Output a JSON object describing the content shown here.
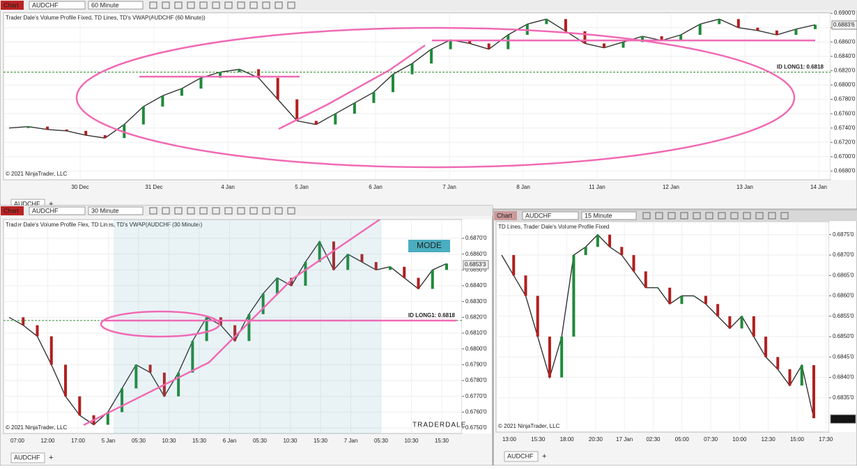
{
  "panels": [
    {
      "toolbar": {
        "label": "Chart",
        "symbol": "AUDCHF",
        "interval": "60 Minute"
      },
      "title": "Trader Dale's Volume Profile Fixed, TD Lines, TD's VWAP(AUDCHF (60 Minute))",
      "ylim": [
        0.66678,
        0.69011
      ],
      "yticks": [
        {
          "value": 0.69,
          "label": "0.6900'0"
        },
        {
          "value": 0.688,
          "label": "0.6880'0"
        },
        {
          "value": 0.686,
          "label": "0.6860'0"
        },
        {
          "value": 0.684,
          "label": "0.6840'0"
        },
        {
          "value": 0.682,
          "label": "0.6820'0"
        },
        {
          "value": 0.68,
          "label": "0.6800'0"
        },
        {
          "value": 0.678,
          "label": "0.6780'0"
        },
        {
          "value": 0.676,
          "label": "0.6760'0"
        },
        {
          "value": 0.674,
          "label": "0.6740'0"
        },
        {
          "value": 0.672,
          "label": "0.6720'0"
        },
        {
          "value": 0.67,
          "label": "0.6700'0"
        },
        {
          "value": 0.668,
          "label": "0.6680'0"
        }
      ],
      "xlabels": [
        "30 Dec",
        "31 Dec",
        "4 Jan",
        "5 Jan",
        "6 Jan",
        "7 Jan",
        "8 Jan",
        "11 Jan",
        "12 Jan",
        "13 Jan",
        "14 Jan"
      ],
      "closes": [
        0.674,
        0.6742,
        0.6738,
        0.6736,
        0.673,
        0.6726,
        0.6745,
        0.677,
        0.6785,
        0.6795,
        0.681,
        0.6818,
        0.6822,
        0.681,
        0.678,
        0.675,
        0.6745,
        0.676,
        0.6775,
        0.679,
        0.6815,
        0.683,
        0.685,
        0.6863,
        0.6858,
        0.685,
        0.687,
        0.6885,
        0.6892,
        0.6875,
        0.6858,
        0.6852,
        0.686,
        0.6868,
        0.6862,
        0.687,
        0.6885,
        0.6892,
        0.688,
        0.6876,
        0.687,
        0.6878,
        0.6884
      ],
      "line_color": "#333333",
      "price": {
        "value": 0.68836,
        "label": "0.6883'6"
      },
      "id_line": {
        "value": 0.6818,
        "label": "ID LONG1: 0.6818"
      },
      "copyright": "© 2021 NinjaTrader, LLC",
      "tab": "AUDCHF"
    },
    {
      "toolbar": {
        "label": "Chart",
        "symbol": "AUDCHF",
        "interval": "30 Minute"
      },
      "title": "Trader Dale's Volume Profile Flex, TD Lines, TD's VWAP(AUDCHF (30 Minute))",
      "ylim": [
        0.67465,
        0.68819
      ],
      "yticks": [
        {
          "value": 0.687,
          "label": "0.6870'0"
        },
        {
          "value": 0.686,
          "label": "0.6860'0"
        },
        {
          "value": 0.685,
          "label": "0.6850'0"
        },
        {
          "value": 0.684,
          "label": "0.6840'0"
        },
        {
          "value": 0.683,
          "label": "0.6830'0"
        },
        {
          "value": 0.682,
          "label": "0.6820'0"
        },
        {
          "value": 0.681,
          "label": "0.6810'0"
        },
        {
          "value": 0.68,
          "label": "0.6800'0"
        },
        {
          "value": 0.679,
          "label": "0.6790'0"
        },
        {
          "value": 0.678,
          "label": "0.6780'0"
        },
        {
          "value": 0.677,
          "label": "0.6770'0"
        },
        {
          "value": 0.676,
          "label": "0.6760'0"
        },
        {
          "value": 0.675,
          "label": "0.6750'0"
        }
      ],
      "xlabels": [
        "07:00",
        "12:00",
        "17:00",
        "5 Jan",
        "05:30",
        "10:30",
        "15:30",
        "6 Jan",
        "05:30",
        "10:30",
        "15:30",
        "7 Jan",
        "05:30",
        "10:30",
        "15:30"
      ],
      "closes": [
        0.682,
        0.6815,
        0.6808,
        0.679,
        0.677,
        0.6758,
        0.6752,
        0.676,
        0.6775,
        0.679,
        0.6785,
        0.677,
        0.6785,
        0.6805,
        0.682,
        0.6815,
        0.6805,
        0.6822,
        0.6835,
        0.6845,
        0.684,
        0.6855,
        0.6868,
        0.685,
        0.686,
        0.6855,
        0.685,
        0.6852,
        0.6845,
        0.6838,
        0.685,
        0.6854
      ],
      "line_color": "#333333",
      "price": {
        "value": 0.68533,
        "label": "0.6853'3"
      },
      "id_line": {
        "value": 0.6818,
        "label": "ID LONG1: 0.6818"
      },
      "copyright": "© 2021 NinjaTrader, LLC",
      "tab": "AUDCHF",
      "button": "MODE",
      "logo": "TRADERDALE"
    },
    {
      "toolbar": {
        "label": "Chart",
        "symbol": "AUDCHF",
        "interval": "15 Minute"
      },
      "title": "TD Lines, Trader Dale's Volume Profile Fixed",
      "ylim": [
        0.68266,
        0.68782
      ],
      "yticks": [
        {
          "value": 0.6875,
          "label": "0.6875'0"
        },
        {
          "value": 0.687,
          "label": "0.6870'0"
        },
        {
          "value": 0.6865,
          "label": "0.6865'0"
        },
        {
          "value": 0.686,
          "label": "0.6860'0"
        },
        {
          "value": 0.6855,
          "label": "0.6855'0"
        },
        {
          "value": 0.685,
          "label": "0.6850'0"
        },
        {
          "value": 0.6845,
          "label": "0.6845'0"
        },
        {
          "value": 0.684,
          "label": "0.6840'0"
        },
        {
          "value": 0.6835,
          "label": "0.6835'0"
        }
      ],
      "xlabels": [
        "13:00",
        "15:30",
        "18:00",
        "20:30",
        "17 Jan",
        "02:30",
        "05:00",
        "07:30",
        "10:00",
        "12:30",
        "15:00",
        "17:30"
      ],
      "closes": [
        0.687,
        0.6865,
        0.686,
        0.685,
        0.684,
        0.685,
        0.687,
        0.6872,
        0.6875,
        0.6872,
        0.687,
        0.6866,
        0.6862,
        0.6862,
        0.6858,
        0.686,
        0.686,
        0.6858,
        0.6855,
        0.6852,
        0.6855,
        0.685,
        0.6845,
        0.6842,
        0.6838,
        0.6843,
        0.683
      ],
      "line_color": "#333333",
      "price": {
        "value": 0.68298,
        "label": "0.6829'8"
      },
      "copyright": "© 2021 NinjaTrader, LLC",
      "tab": "AUDCHF"
    }
  ]
}
